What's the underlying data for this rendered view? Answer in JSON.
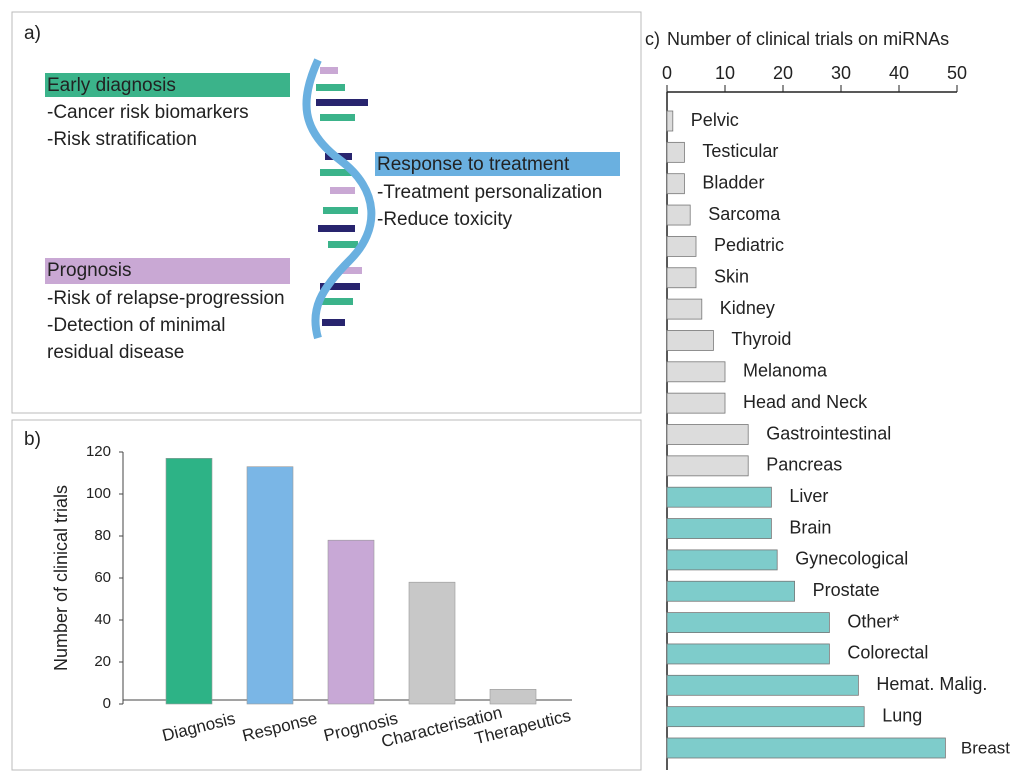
{
  "diagram": {
    "label": "a)",
    "boxes": [
      {
        "title": "Early diagnosis",
        "items": [
          "-Cancer risk biomarkers",
          "-Risk stratification"
        ]
      },
      {
        "title": "Response to treatment",
        "items": [
          "-Treatment personalization",
          "-Reduce toxicity"
        ]
      },
      {
        "title": "Prognosis",
        "items": [
          "-Risk of relapse-progression",
          "-Detection of minimal",
          "residual disease"
        ]
      }
    ]
  },
  "chart_data": [
    {
      "type": "bar",
      "label": "b)",
      "ylabel": "Number of clinical trials",
      "categories": [
        "Diagnosis",
        "Response",
        "Prognosis",
        "Characterisation",
        "Therapeutics"
      ],
      "values": [
        117,
        113,
        78,
        58,
        7
      ],
      "colors": [
        "#2db386",
        "#7ab6e6",
        "#c8a8d6",
        "#c8c8c8",
        "#c8c8c8"
      ],
      "ylim": [
        0,
        120
      ],
      "yticks": [
        0,
        20,
        40,
        60,
        80,
        100,
        120
      ]
    },
    {
      "type": "barh",
      "label": "c)",
      "title": "Number of clinical trials on miRNAs",
      "categories": [
        "Pelvic",
        "Testicular",
        "Bladder",
        "Sarcoma",
        "Pediatric",
        "Skin",
        "Kidney",
        "Thyroid",
        "Melanoma",
        "Head and Neck",
        "Gastrointestinal",
        "Pancreas",
        "Liver",
        "Brain",
        "Gynecological",
        "Prostate",
        "Other*",
        "Colorectal",
        "Hemat. Malig.",
        "Lung",
        "Breast"
      ],
      "values": [
        1,
        3,
        3,
        4,
        5,
        5,
        6,
        8,
        10,
        10,
        14,
        14,
        18,
        18,
        19,
        22,
        28,
        28,
        33,
        34,
        48
      ],
      "colors": [
        "#dcdcdc",
        "#dcdcdc",
        "#dcdcdc",
        "#dcdcdc",
        "#dcdcdc",
        "#dcdcdc",
        "#dcdcdc",
        "#dcdcdc",
        "#dcdcdc",
        "#dcdcdc",
        "#dcdcdc",
        "#dcdcdc",
        "#7ecccb",
        "#7ecccb",
        "#7ecccb",
        "#7ecccb",
        "#7ecccb",
        "#7ecccb",
        "#7ecccb",
        "#7ecccb",
        "#7ecccb"
      ],
      "xlim": [
        0,
        50
      ],
      "xticks": [
        0,
        10,
        20,
        30,
        40,
        50
      ]
    }
  ]
}
